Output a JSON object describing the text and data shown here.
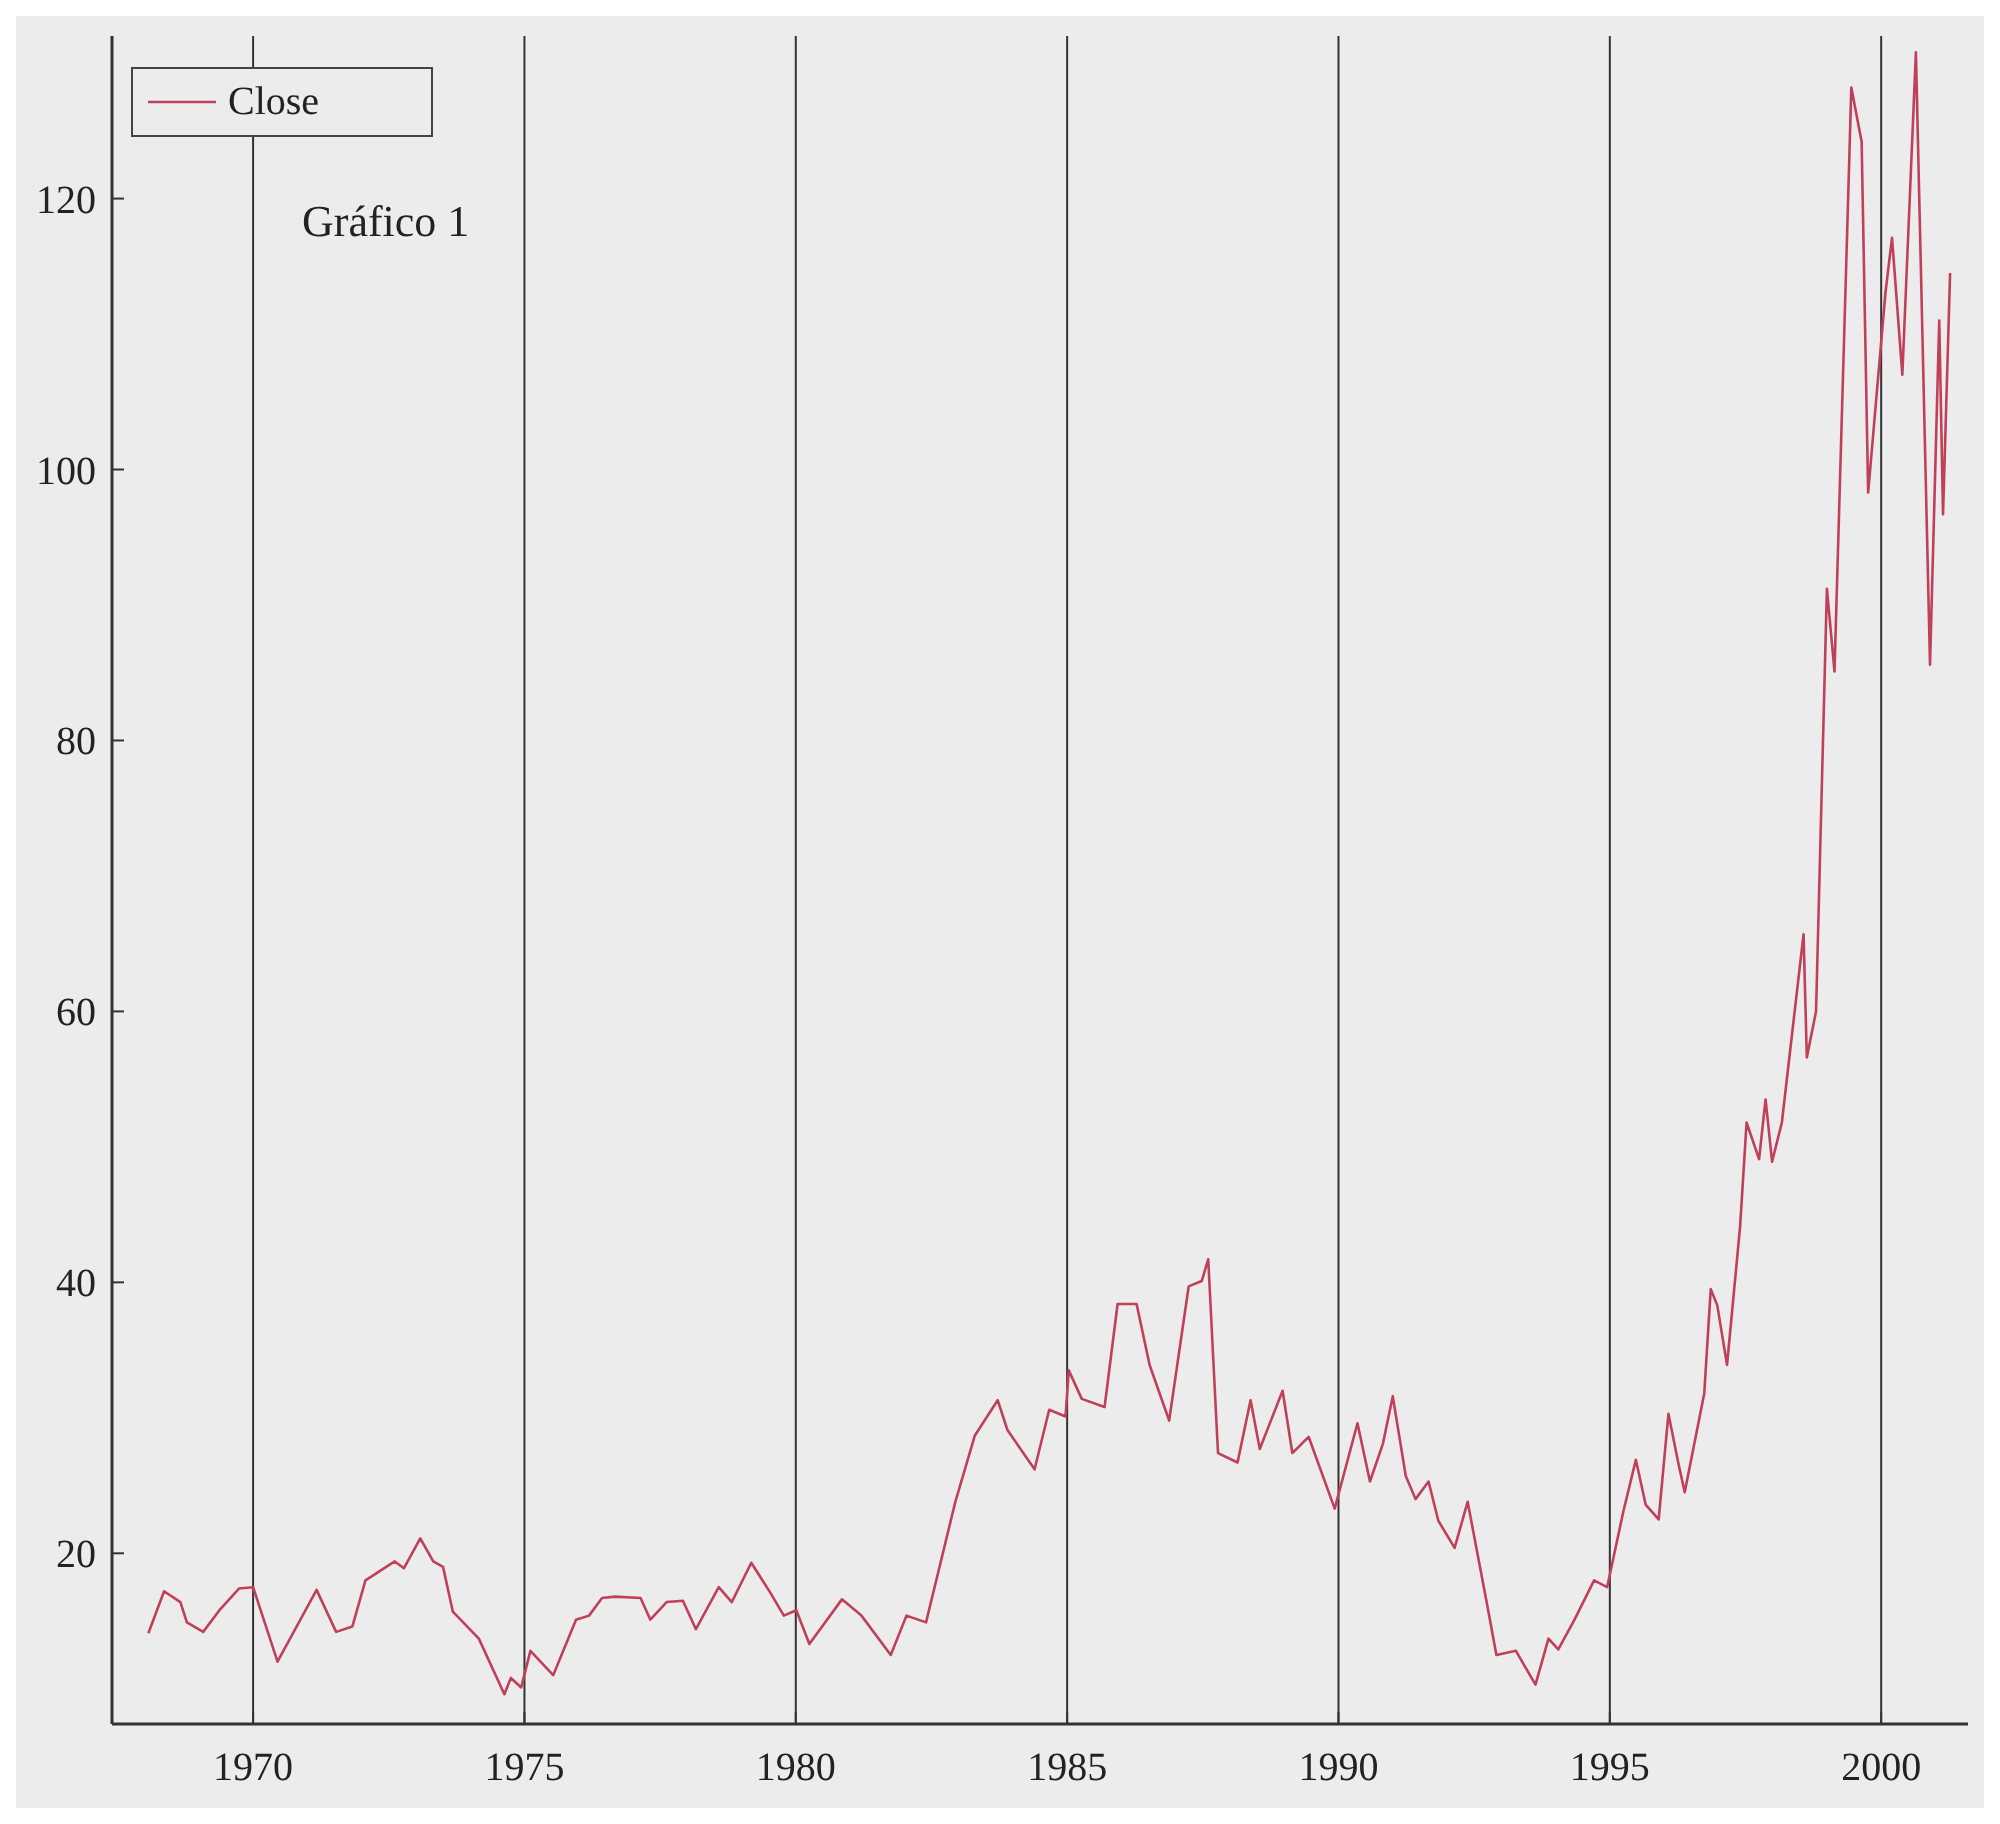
{
  "chart_data": {
    "type": "line",
    "annotations": [
      "Gráfico 1"
    ],
    "x": [
      1968.07,
      1968.36,
      1968.66,
      1968.78,
      1969.08,
      1969.38,
      1969.74,
      1970.0,
      1970.45,
      1971.17,
      1971.53,
      1971.83,
      1972.07,
      1972.61,
      1972.78,
      1973.08,
      1973.32,
      1973.5,
      1973.68,
      1974.16,
      1974.63,
      1974.75,
      1974.94,
      1975.11,
      1975.53,
      1975.95,
      1976.19,
      1976.43,
      1976.67,
      1977.14,
      1977.32,
      1977.62,
      1977.92,
      1978.16,
      1978.58,
      1978.82,
      1979.18,
      1979.53,
      1979.78,
      1980.01,
      1980.25,
      1980.85,
      1981.21,
      1981.75,
      1982.04,
      1982.4,
      1982.94,
      1983.3,
      1983.72,
      1983.9,
      1984.4,
      1984.67,
      1984.97,
      1985.03,
      1985.27,
      1985.69,
      1985.93,
      1986.28,
      1986.52,
      1986.88,
      1987.24,
      1987.48,
      1987.6,
      1987.78,
      1988.14,
      1988.38,
      1988.55,
      1988.97,
      1989.15,
      1989.45,
      1989.93,
      1990.35,
      1990.58,
      1990.82,
      1991.0,
      1991.24,
      1991.42,
      1991.66,
      1991.84,
      1992.14,
      1992.38,
      1992.73,
      1992.91,
      1993.27,
      1993.63,
      1993.87,
      1994.05,
      1994.35,
      1994.71,
      1994.95,
      1995.25,
      1995.48,
      1995.66,
      1995.9,
      1996.08,
      1996.26,
      1996.38,
      1996.74,
      1996.86,
      1996.98,
      1997.16,
      1997.4,
      1997.52,
      1997.75,
      1997.87,
      1997.99,
      1998.17,
      1998.57,
      1998.63,
      1998.8,
      1999.0,
      1999.14,
      1999.45,
      1999.64,
      1999.76,
      2000.08,
      2000.2,
      2000.39,
      2000.64,
      2000.9,
      2001.07,
      2001.14,
      2001.27
    ],
    "series": [
      {
        "name": "Close",
        "color": "#c0405a",
        "values": [
          14.1,
          17.2,
          16.4,
          14.9,
          14.2,
          15.8,
          17.4,
          17.5,
          12.0,
          17.3,
          14.2,
          14.6,
          18.0,
          19.4,
          18.9,
          21.1,
          19.4,
          19.0,
          15.7,
          13.7,
          9.6,
          10.8,
          10.1,
          12.8,
          11.0,
          15.1,
          15.4,
          16.7,
          16.8,
          16.7,
          15.1,
          16.4,
          16.5,
          14.4,
          17.5,
          16.4,
          19.3,
          17.1,
          15.4,
          15.8,
          13.3,
          16.6,
          15.4,
          12.5,
          15.4,
          14.9,
          23.8,
          28.7,
          31.3,
          29.1,
          26.2,
          30.6,
          30.1,
          33.5,
          31.4,
          30.8,
          38.4,
          38.4,
          33.9,
          29.8,
          39.7,
          40.1,
          41.7,
          27.4,
          26.7,
          31.3,
          27.7,
          32.0,
          27.4,
          28.6,
          23.3,
          29.6,
          25.3,
          28.1,
          31.6,
          25.7,
          24.0,
          25.3,
          22.4,
          20.4,
          23.8,
          16.4,
          12.5,
          12.8,
          10.3,
          13.7,
          12.9,
          15.1,
          18.0,
          17.5,
          23.1,
          26.9,
          23.6,
          22.5,
          30.3,
          26.7,
          24.5,
          31.8,
          39.5,
          38.3,
          33.9,
          44.1,
          51.8,
          49.1,
          53.5,
          48.9,
          51.8,
          65.7,
          56.6,
          60.0,
          91.2,
          85.1,
          128.2,
          124.2,
          98.3,
          113.1,
          117.1,
          107.0,
          130.8,
          85.6,
          111.0,
          96.7,
          114.5
        ]
      }
    ],
    "xlim": [
      1967.4,
      2001.6
    ],
    "ylim": [
      7.4,
      132
    ],
    "xticks": [
      1970,
      1975,
      1980,
      1985,
      1990,
      1995,
      2000
    ],
    "yticks": [
      20,
      40,
      60,
      80,
      100,
      120
    ],
    "grid": "x",
    "legend": "top left"
  }
}
